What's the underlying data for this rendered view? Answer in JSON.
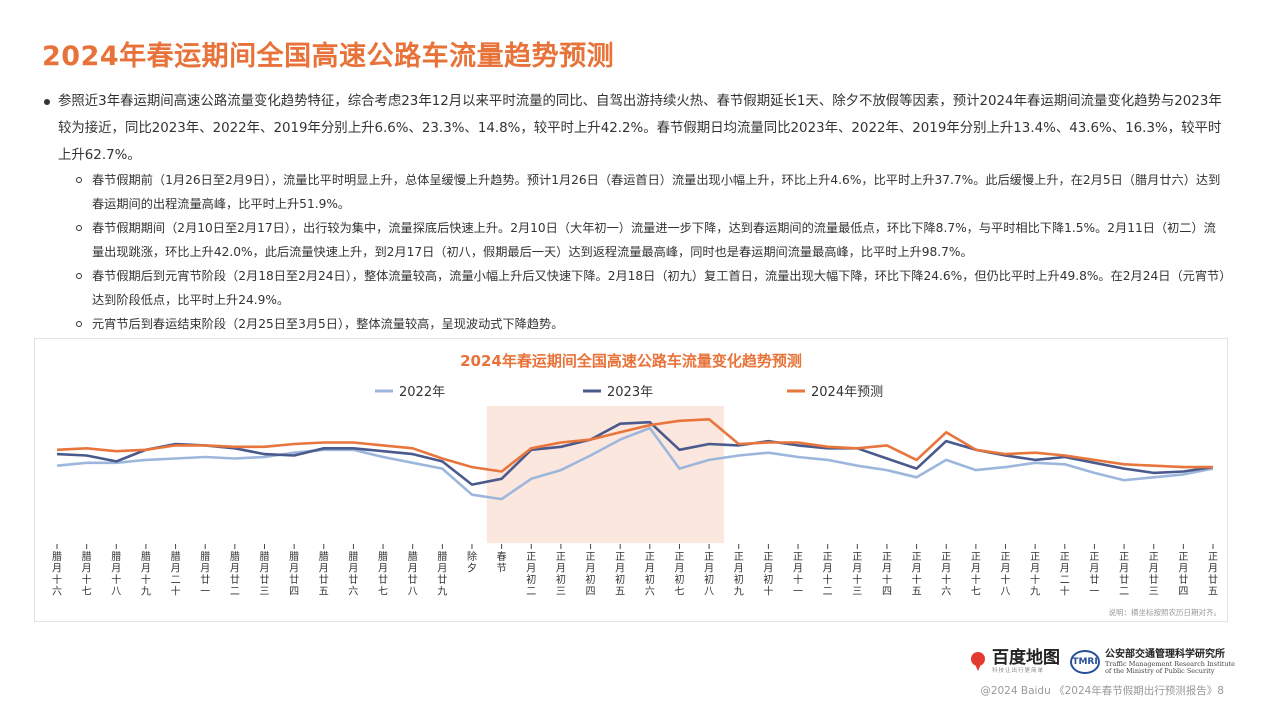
{
  "page": {
    "title": "2024年春运期间全国高速公路车流量趋势预测",
    "main_bullet": "参照近3年春运期间高速公路流量变化趋势特征，综合考虑23年12月以来平时流量的同比、自驾出游持续火热、春节假期延长1天、除夕不放假等因素，预计2024年春运期间流量变化趋势与2023年较为接近，同比2023年、2022年、2019年分别上升6.6%、23.3%、14.8%，较平时上升42.2%。春节假期日均流量同比2023年、2022年、2019年分别上升13.4%、43.6%、16.3%，较平时上升62.7%。",
    "sub_bullets": [
      "春节假期前（1月26日至2月9日），流量比平时明显上升，总体呈缓慢上升趋势。预计1月26日（春运首日）流量出现小幅上升，环比上升4.6%，比平时上升37.7%。此后缓慢上升，在2月5日（腊月廿六）达到春运期间的出程流量高峰，比平时上升51.9%。",
      "春节假期期间（2月10日至2月17日），出行较为集中，流量探底后快速上升。2月10日（大年初一）流量进一步下降，达到春运期间的流量最低点，环比下降8.7%，与平时相比下降1.5%。2月11日（初二）流量出现跳涨，环比上升42.0%，此后流量快速上升，到2月17日（初八，假期最后一天）达到返程流量最高峰，同时也是春运期间流量最高峰，比平时上升98.7%。",
      "春节假期后到元宵节阶段（2月18日至2月24日），整体流量较高，流量小幅上升后又快速下降。2月18日（初九）复工首日，流量出现大幅下降，环比下降24.6%，但仍比平时上升49.8%。在2月24日（元宵节）达到阶段低点，比平时上升24.9%。",
      "元宵节后到春运结束阶段（2月25日至3月5日），整体流量较高，呈现波动式下降趋势。"
    ],
    "footer": "@2024 Baidu 《2024年春节假期出行预测报告》8"
  },
  "logos": {
    "baidu_name": "百度地图",
    "baidu_tagline": "科技让出行更简单",
    "tmri_mark": "TMRI",
    "tmri_name": "公安部交通管理科学研究所",
    "tmri_en_1": "Traffic Management Research Institute",
    "tmri_en_2": "of the Ministry of Public Security"
  },
  "chart_data": {
    "type": "line",
    "title": "2024年春运期间全国高速公路车流量变化趋势预测",
    "note": "说明：横坐标按照农历日期对齐。",
    "legend_placement": "top",
    "highlight_range": [
      "春节",
      "正月初八"
    ],
    "categories": [
      "腊月十六",
      "腊月十七",
      "腊月十八",
      "腊月十九",
      "腊月二十",
      "腊月廿一",
      "腊月廿二",
      "腊月廿三",
      "腊月廿四",
      "腊月廿五",
      "腊月廿六",
      "腊月廿七",
      "腊月廿八",
      "腊月廿九",
      "除夕",
      "春节",
      "正月初二",
      "正月初三",
      "正月初四",
      "正月初五",
      "正月初六",
      "正月初七",
      "正月初八",
      "正月初九",
      "正月初十",
      "正月十一",
      "正月十二",
      "正月十三",
      "正月十四",
      "正月十五",
      "正月十六",
      "正月十七",
      "正月十八",
      "正月十九",
      "正月二十",
      "正月廿一",
      "正月廿二",
      "正月廿三",
      "正月廿四",
      "正月廿五"
    ],
    "ylim": [
      0,
      100
    ],
    "series": [
      {
        "name": "2022年",
        "color": "#9db7dc",
        "values": [
          54,
          56,
          56,
          58,
          59,
          60,
          59,
          60,
          63,
          65,
          65,
          60,
          56,
          52,
          34,
          31,
          45,
          51,
          61,
          72,
          80,
          52,
          58,
          61,
          63,
          60,
          58,
          54,
          51,
          46,
          58,
          51,
          53,
          56,
          55,
          49,
          44,
          46,
          48,
          52
        ]
      },
      {
        "name": "2023年",
        "color": "#4a5a8c",
        "values": [
          62,
          61,
          57,
          65,
          69,
          68,
          66,
          62,
          61,
          66,
          66,
          64,
          62,
          57,
          41,
          45,
          65,
          67,
          72,
          83,
          84,
          65,
          69,
          68,
          71,
          68,
          66,
          66,
          59,
          52,
          71,
          65,
          61,
          58,
          60,
          56,
          52,
          49,
          50,
          53
        ]
      },
      {
        "name": "2024年预测",
        "color": "#e8753c",
        "values": [
          65,
          66,
          64,
          65,
          68,
          68,
          67,
          67,
          69,
          70,
          70,
          68,
          66,
          59,
          53,
          50,
          66,
          70,
          72,
          77,
          82,
          85,
          86,
          69,
          70,
          70,
          67,
          66,
          68,
          58,
          77,
          65,
          62,
          63,
          61,
          58,
          55,
          54,
          53,
          53
        ]
      }
    ]
  }
}
